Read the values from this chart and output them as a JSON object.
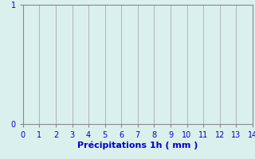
{
  "title": "",
  "xlabel": "Précipitations 1h ( mm )",
  "ylabel": "",
  "xlim": [
    0,
    14
  ],
  "ylim": [
    0,
    1
  ],
  "xticks": [
    0,
    1,
    2,
    3,
    4,
    5,
    6,
    7,
    8,
    9,
    10,
    11,
    12,
    13,
    14
  ],
  "yticks": [
    0,
    1
  ],
  "background_color": "#daf0ec",
  "plot_bg_color": "#daf0ec",
  "grid_color": "#aaaaaa",
  "axis_color": "#888888",
  "tick_color": "#0000cc",
  "label_color": "#0000cc",
  "xlabel_fontsize": 8,
  "tick_fontsize": 7
}
